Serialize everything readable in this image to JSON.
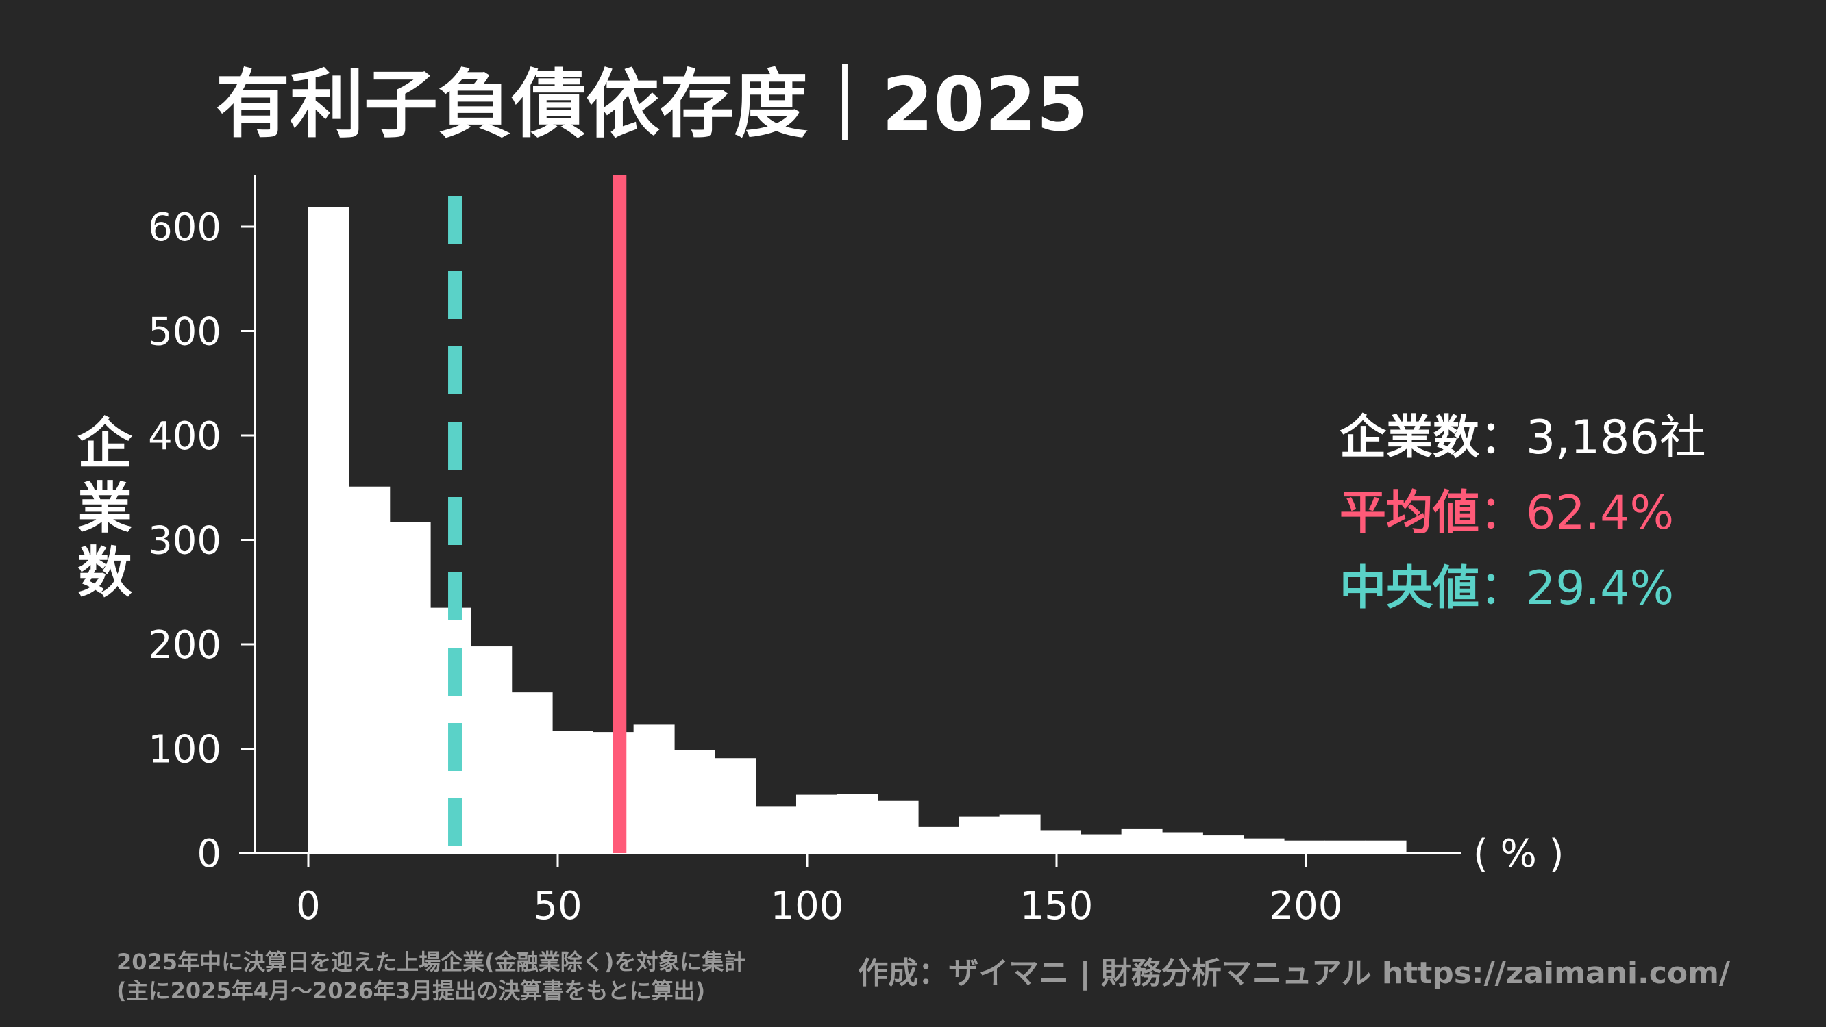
{
  "colors": {
    "background": "#272727",
    "bars": "#ffffff",
    "mean": "#ff5a78",
    "median": "#5ad2c8",
    "footer": "#9a9a9a"
  },
  "chart_data": {
    "type": "bar",
    "title": "有利子負債依存度｜2025",
    "xlabel": "( % )",
    "ylabel": "企業数",
    "xlim": [
      -10.7,
      231
    ],
    "ylim": [
      0,
      650
    ],
    "grid": false,
    "bin_width": 8.15,
    "bin_start": 0,
    "values": [
      619,
      351,
      317,
      235,
      198,
      154,
      117,
      116,
      123,
      99,
      91,
      45,
      56,
      57,
      50,
      25,
      35,
      37,
      22,
      18,
      23,
      20,
      17,
      14,
      12,
      12,
      12
    ],
    "x_ticks": [
      0,
      50,
      100,
      150,
      200
    ],
    "y_ticks": [
      0,
      100,
      200,
      300,
      400,
      500,
      600
    ],
    "mean_line": 62.4,
    "median_line": 29.4,
    "stats": [
      {
        "label": "企業数",
        "sep": "：",
        "value": "3,186社",
        "color": "#ffffff"
      },
      {
        "label": "平均値",
        "sep": "：",
        "value": "62.4%",
        "color": "#ff5a78"
      },
      {
        "label": "中央値",
        "sep": "：",
        "value": "29.4%",
        "color": "#5ad2c8"
      }
    ]
  },
  "footer": {
    "note_line1": "2025年中に決算日を迎えた上場企業(金融業除く)を対象に集計",
    "note_line2": "(主に2025年4月～2026年3月提出の決算書をもとに算出)",
    "credit": "作成：ザイマニ | 財務分析マニュアル https://zaimani.com/"
  }
}
